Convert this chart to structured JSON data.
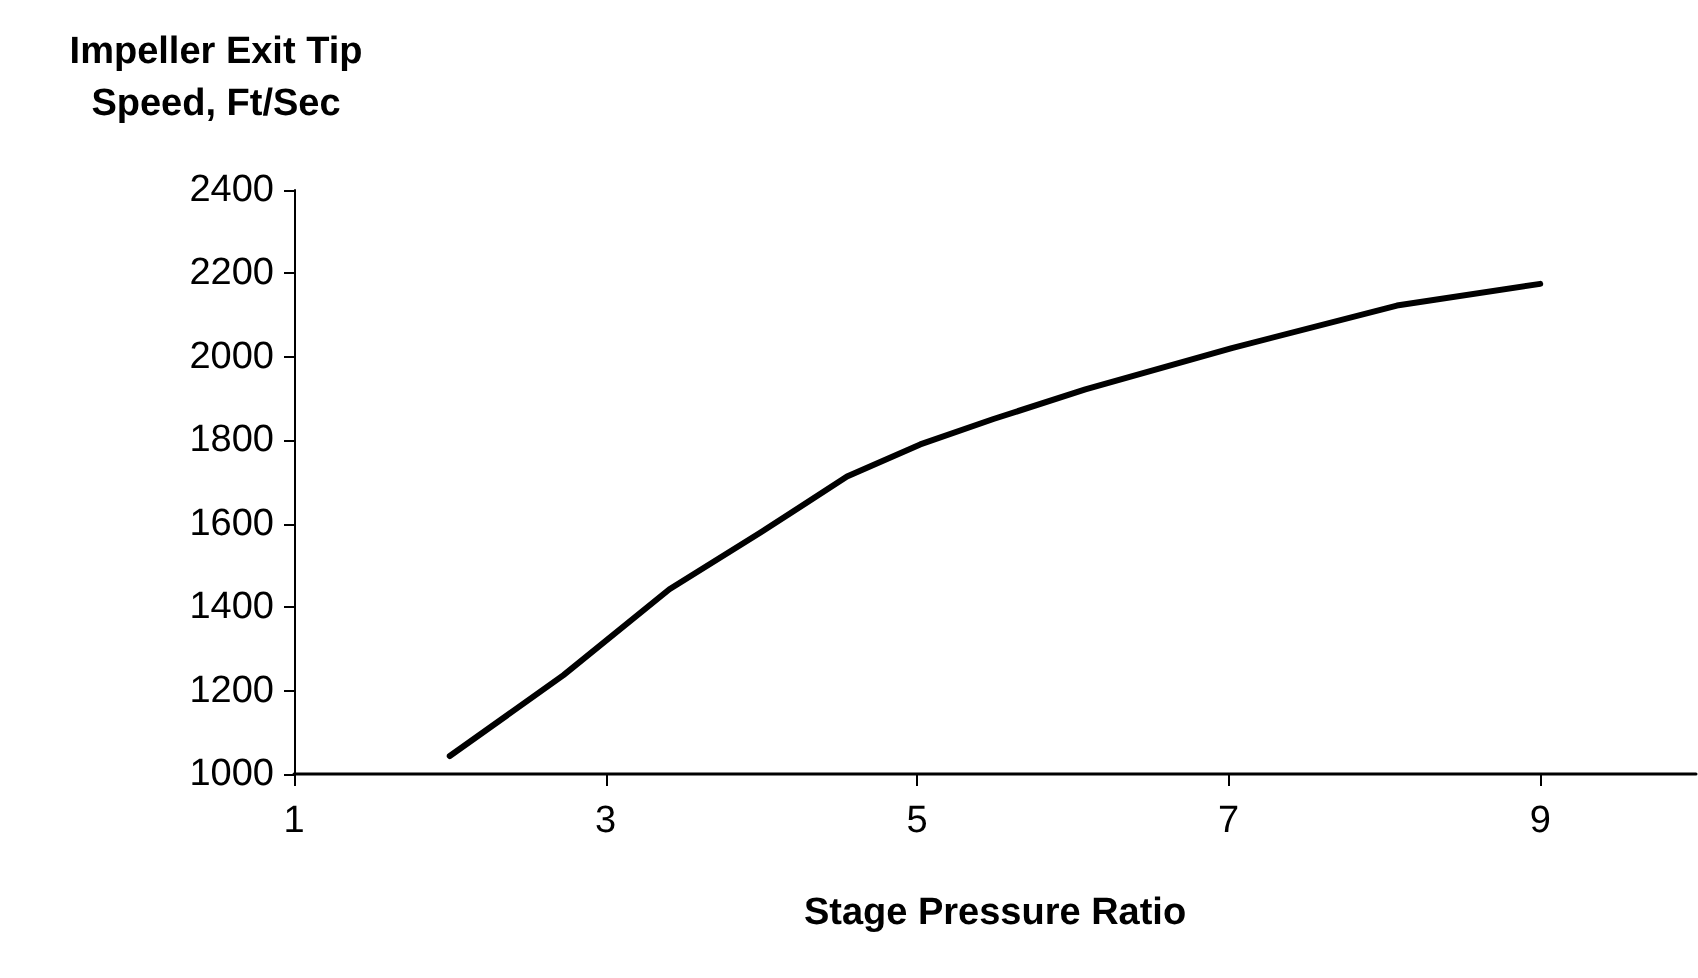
{
  "chart_data": {
    "type": "line",
    "ylabel": "Impeller Exit Tip\nSpeed, Ft/Sec",
    "xlabel": "Stage Pressure Ratio",
    "x": [
      2,
      2.73,
      3.41,
      4,
      4.55,
      5.02,
      5.49,
      6.08,
      7.02,
      8.08,
      9
    ],
    "series": [
      {
        "color": "#000000",
        "values": [
          1043,
          1237,
          1443,
          1580,
          1713,
          1790,
          1851,
          1922,
          2021,
          2123,
          2175
        ]
      }
    ],
    "xlim": [
      1,
      10
    ],
    "xticks": [
      1,
      3,
      5,
      7,
      9
    ],
    "ylim": [
      1000,
      2400
    ],
    "yticks": [
      1000,
      1200,
      1400,
      1600,
      1800,
      2000,
      2200,
      2400
    ],
    "grid": false,
    "marker": "none",
    "line_style": "solid"
  }
}
